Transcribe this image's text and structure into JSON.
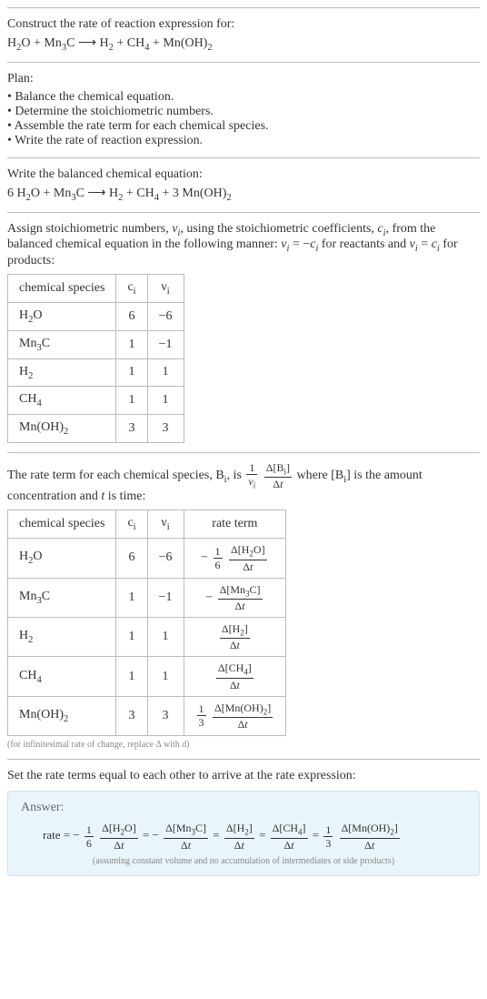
{
  "title": "Construct the rate of reaction expression for:",
  "equation_unbalanced_html": "H<sub>2</sub>O + Mn<sub>3</sub>C ⟶ H<sub>2</sub> + CH<sub>4</sub> + Mn(OH)<sub>2</sub>",
  "plan_label": "Plan:",
  "plan_items": [
    "Balance the chemical equation.",
    "Determine the stoichiometric numbers.",
    "Assemble the rate term for each chemical species.",
    "Write the rate of reaction expression."
  ],
  "balanced_label": "Write the balanced chemical equation:",
  "equation_balanced_html": "6 H<sub>2</sub>O + Mn<sub>3</sub>C ⟶ H<sub>2</sub> + CH<sub>4</sub> + 3 Mn(OH)<sub>2</sub>",
  "assign_text_html": "Assign stoichiometric numbers, <i>ν<sub>i</sub></i>, using the stoichiometric coefficients, <i>c<sub>i</sub></i>, from the balanced chemical equation in the following manner: <i>ν<sub>i</sub></i> = −<i>c<sub>i</sub></i> for reactants and <i>ν<sub>i</sub></i> = <i>c<sub>i</sub></i> for products:",
  "stoich_table": {
    "headers": [
      "chemical species",
      "c<sub>i</sub>",
      "ν<sub>i</sub>"
    ],
    "rows": [
      [
        "H<sub>2</sub>O",
        "6",
        "−6"
      ],
      [
        "Mn<sub>3</sub>C",
        "1",
        "−1"
      ],
      [
        "H<sub>2</sub>",
        "1",
        "1"
      ],
      [
        "CH<sub>4</sub>",
        "1",
        "1"
      ],
      [
        "Mn(OH)<sub>2</sub>",
        "3",
        "3"
      ]
    ]
  },
  "rate_intro_pre": "The rate term for each chemical species, B<sub>i</sub>, is ",
  "rate_intro_post": " where [B<sub>i</sub>] is the amount concentration and <i>t</i> is time:",
  "rate_frac_outer_num": "1",
  "rate_frac_outer_den": "<i>ν<sub>i</sub></i>",
  "rate_frac_inner_num": "Δ[B<sub>i</sub>]",
  "rate_frac_inner_den": "Δ<i>t</i>",
  "rate_table": {
    "headers": [
      "chemical species",
      "c<sub>i</sub>",
      "ν<sub>i</sub>",
      "rate term"
    ],
    "rows": [
      {
        "sp": "H<sub>2</sub>O",
        "c": "6",
        "v": "−6",
        "sign": "−",
        "coef_num": "1",
        "coef_den": "6",
        "dnum": "Δ[H<sub>2</sub>O]",
        "dden": "Δ<i>t</i>"
      },
      {
        "sp": "Mn<sub>3</sub>C",
        "c": "1",
        "v": "−1",
        "sign": "−",
        "coef_num": "",
        "coef_den": "",
        "dnum": "Δ[Mn<sub>3</sub>C]",
        "dden": "Δ<i>t</i>"
      },
      {
        "sp": "H<sub>2</sub>",
        "c": "1",
        "v": "1",
        "sign": "",
        "coef_num": "",
        "coef_den": "",
        "dnum": "Δ[H<sub>2</sub>]",
        "dden": "Δ<i>t</i>"
      },
      {
        "sp": "CH<sub>4</sub>",
        "c": "1",
        "v": "1",
        "sign": "",
        "coef_num": "",
        "coef_den": "",
        "dnum": "Δ[CH<sub>4</sub>]",
        "dden": "Δ<i>t</i>"
      },
      {
        "sp": "Mn(OH)<sub>2</sub>",
        "c": "3",
        "v": "3",
        "sign": "",
        "coef_num": "1",
        "coef_den": "3",
        "dnum": "Δ[Mn(OH)<sub>2</sub>]",
        "dden": "Δ<i>t</i>"
      }
    ]
  },
  "footnote": "(for infinitesimal rate of change, replace Δ with d)",
  "set_equal_text": "Set the rate terms equal to each other to arrive at the rate expression:",
  "answer_label": "Answer:",
  "answer_terms": [
    {
      "lhs": "rate = ",
      "sign": "−",
      "coef_num": "1",
      "coef_den": "6",
      "dnum": "Δ[H<sub>2</sub>O]",
      "dden": "Δ<i>t</i>"
    },
    {
      "lhs": " = ",
      "sign": "−",
      "coef_num": "",
      "coef_den": "",
      "dnum": "Δ[Mn<sub>3</sub>C]",
      "dden": "Δ<i>t</i>"
    },
    {
      "lhs": " = ",
      "sign": "",
      "coef_num": "",
      "coef_den": "",
      "dnum": "Δ[H<sub>2</sub>]",
      "dden": "Δ<i>t</i>"
    },
    {
      "lhs": " = ",
      "sign": "",
      "coef_num": "",
      "coef_den": "",
      "dnum": "Δ[CH<sub>4</sub>]",
      "dden": "Δ<i>t</i>"
    },
    {
      "lhs": " = ",
      "sign": "",
      "coef_num": "1",
      "coef_den": "3",
      "dnum": "Δ[Mn(OH)<sub>2</sub>]",
      "dden": "Δ<i>t</i>"
    }
  ],
  "answer_note": "(assuming constant volume and no accumulation of intermediates or side products)",
  "colors": {
    "border": "#bbbbbb",
    "text": "#333333",
    "muted": "#888888",
    "answer_bg": "#eaf4fb",
    "answer_border": "#cfe3f0"
  }
}
